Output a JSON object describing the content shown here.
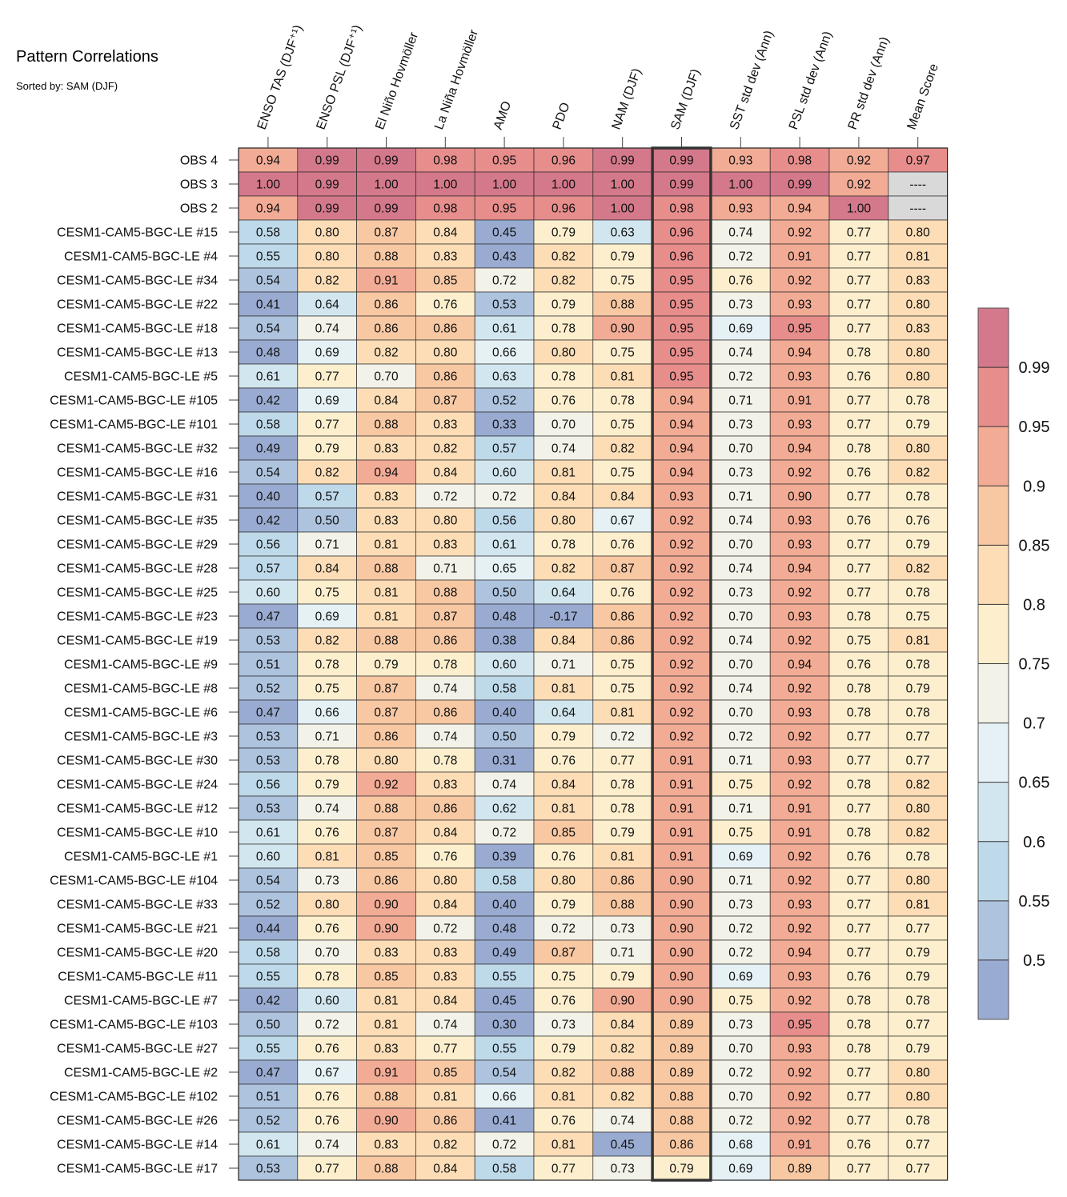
{
  "chart_data": {
    "type": "heatmap",
    "title": "Pattern Correlations",
    "subtitle": "Sorted by: SAM (DJF)",
    "highlight_column": "SAM (DJF)",
    "columns": [
      "ENSO TAS (DJF⁺¹)",
      "ENSO PSL (DJF⁺¹)",
      "El Niño Hovmöller",
      "La Niña Hovmöller",
      "AMO",
      "PDO",
      "NAM (DJF)",
      "SAM (DJF)",
      "SST std dev (Ann)",
      "PSL std dev (Ann)",
      "PR std dev (Ann)",
      "Mean Score"
    ],
    "rows": [
      {
        "name": "OBS 4",
        "values": [
          0.94,
          0.99,
          0.99,
          0.98,
          0.95,
          0.96,
          0.99,
          0.99,
          0.93,
          0.98,
          0.92,
          0.97
        ]
      },
      {
        "name": "OBS 3",
        "values": [
          1.0,
          0.99,
          1.0,
          1.0,
          1.0,
          1.0,
          1.0,
          0.99,
          1.0,
          0.99,
          0.92,
          null
        ]
      },
      {
        "name": "OBS 2",
        "values": [
          0.94,
          0.99,
          0.99,
          0.98,
          0.95,
          0.96,
          1.0,
          0.98,
          0.93,
          0.94,
          1.0,
          null
        ]
      },
      {
        "name": "CESM1-CAM5-BGC-LE #15",
        "values": [
          0.58,
          0.8,
          0.87,
          0.84,
          0.45,
          0.79,
          0.63,
          0.96,
          0.74,
          0.92,
          0.77,
          0.8
        ]
      },
      {
        "name": "CESM1-CAM5-BGC-LE #4",
        "values": [
          0.55,
          0.8,
          0.88,
          0.83,
          0.43,
          0.82,
          0.79,
          0.96,
          0.72,
          0.91,
          0.77,
          0.81
        ]
      },
      {
        "name": "CESM1-CAM5-BGC-LE #34",
        "values": [
          0.54,
          0.82,
          0.91,
          0.85,
          0.72,
          0.82,
          0.75,
          0.95,
          0.76,
          0.92,
          0.77,
          0.83
        ]
      },
      {
        "name": "CESM1-CAM5-BGC-LE #22",
        "values": [
          0.41,
          0.64,
          0.86,
          0.76,
          0.53,
          0.79,
          0.88,
          0.95,
          0.73,
          0.93,
          0.77,
          0.8
        ]
      },
      {
        "name": "CESM1-CAM5-BGC-LE #18",
        "values": [
          0.54,
          0.74,
          0.86,
          0.86,
          0.61,
          0.78,
          0.9,
          0.95,
          0.69,
          0.95,
          0.77,
          0.83
        ]
      },
      {
        "name": "CESM1-CAM5-BGC-LE #13",
        "values": [
          0.48,
          0.69,
          0.82,
          0.8,
          0.66,
          0.8,
          0.75,
          0.95,
          0.74,
          0.94,
          0.78,
          0.8
        ]
      },
      {
        "name": "CESM1-CAM5-BGC-LE #5",
        "values": [
          0.61,
          0.77,
          0.7,
          0.86,
          0.63,
          0.78,
          0.81,
          0.95,
          0.72,
          0.93,
          0.76,
          0.8
        ]
      },
      {
        "name": "CESM1-CAM5-BGC-LE #105",
        "values": [
          0.42,
          0.69,
          0.84,
          0.87,
          0.52,
          0.76,
          0.78,
          0.94,
          0.71,
          0.91,
          0.77,
          0.78
        ]
      },
      {
        "name": "CESM1-CAM5-BGC-LE #101",
        "values": [
          0.58,
          0.77,
          0.88,
          0.83,
          0.33,
          0.7,
          0.75,
          0.94,
          0.73,
          0.93,
          0.77,
          0.79
        ]
      },
      {
        "name": "CESM1-CAM5-BGC-LE #32",
        "values": [
          0.49,
          0.79,
          0.83,
          0.82,
          0.57,
          0.74,
          0.82,
          0.94,
          0.7,
          0.94,
          0.78,
          0.8
        ]
      },
      {
        "name": "CESM1-CAM5-BGC-LE #16",
        "values": [
          0.54,
          0.82,
          0.94,
          0.84,
          0.6,
          0.81,
          0.75,
          0.94,
          0.73,
          0.92,
          0.76,
          0.82
        ]
      },
      {
        "name": "CESM1-CAM5-BGC-LE #31",
        "values": [
          0.4,
          0.57,
          0.83,
          0.72,
          0.72,
          0.84,
          0.84,
          0.93,
          0.71,
          0.9,
          0.77,
          0.78
        ]
      },
      {
        "name": "CESM1-CAM5-BGC-LE #35",
        "values": [
          0.42,
          0.5,
          0.83,
          0.8,
          0.56,
          0.8,
          0.67,
          0.92,
          0.74,
          0.93,
          0.76,
          0.76
        ]
      },
      {
        "name": "CESM1-CAM5-BGC-LE #29",
        "values": [
          0.56,
          0.71,
          0.81,
          0.83,
          0.61,
          0.78,
          0.76,
          0.92,
          0.7,
          0.93,
          0.77,
          0.79
        ]
      },
      {
        "name": "CESM1-CAM5-BGC-LE #28",
        "values": [
          0.57,
          0.84,
          0.88,
          0.71,
          0.65,
          0.82,
          0.87,
          0.92,
          0.74,
          0.94,
          0.77,
          0.82
        ]
      },
      {
        "name": "CESM1-CAM5-BGC-LE #25",
        "values": [
          0.6,
          0.75,
          0.81,
          0.88,
          0.5,
          0.64,
          0.76,
          0.92,
          0.73,
          0.92,
          0.77,
          0.78
        ]
      },
      {
        "name": "CESM1-CAM5-BGC-LE #23",
        "values": [
          0.47,
          0.69,
          0.81,
          0.87,
          0.48,
          -0.17,
          0.86,
          0.92,
          0.7,
          0.93,
          0.78,
          0.75
        ]
      },
      {
        "name": "CESM1-CAM5-BGC-LE #19",
        "values": [
          0.53,
          0.82,
          0.88,
          0.86,
          0.38,
          0.84,
          0.86,
          0.92,
          0.74,
          0.92,
          0.75,
          0.81
        ]
      },
      {
        "name": "CESM1-CAM5-BGC-LE #9",
        "values": [
          0.51,
          0.78,
          0.79,
          0.78,
          0.6,
          0.71,
          0.75,
          0.92,
          0.7,
          0.94,
          0.76,
          0.78
        ]
      },
      {
        "name": "CESM1-CAM5-BGC-LE #8",
        "values": [
          0.52,
          0.75,
          0.87,
          0.74,
          0.58,
          0.81,
          0.75,
          0.92,
          0.74,
          0.92,
          0.78,
          0.79
        ]
      },
      {
        "name": "CESM1-CAM5-BGC-LE #6",
        "values": [
          0.47,
          0.66,
          0.87,
          0.86,
          0.4,
          0.64,
          0.81,
          0.92,
          0.7,
          0.93,
          0.78,
          0.78
        ]
      },
      {
        "name": "CESM1-CAM5-BGC-LE #3",
        "values": [
          0.53,
          0.71,
          0.86,
          0.74,
          0.5,
          0.79,
          0.72,
          0.92,
          0.72,
          0.92,
          0.77,
          0.77
        ]
      },
      {
        "name": "CESM1-CAM5-BGC-LE #30",
        "values": [
          0.53,
          0.78,
          0.8,
          0.78,
          0.31,
          0.76,
          0.77,
          0.91,
          0.71,
          0.93,
          0.77,
          0.77
        ]
      },
      {
        "name": "CESM1-CAM5-BGC-LE #24",
        "values": [
          0.56,
          0.79,
          0.92,
          0.83,
          0.74,
          0.84,
          0.78,
          0.91,
          0.75,
          0.92,
          0.78,
          0.82
        ]
      },
      {
        "name": "CESM1-CAM5-BGC-LE #12",
        "values": [
          0.53,
          0.74,
          0.88,
          0.86,
          0.62,
          0.81,
          0.78,
          0.91,
          0.71,
          0.91,
          0.77,
          0.8
        ]
      },
      {
        "name": "CESM1-CAM5-BGC-LE #10",
        "values": [
          0.61,
          0.76,
          0.87,
          0.84,
          0.72,
          0.85,
          0.79,
          0.91,
          0.75,
          0.91,
          0.78,
          0.82
        ]
      },
      {
        "name": "CESM1-CAM5-BGC-LE #1",
        "values": [
          0.6,
          0.81,
          0.85,
          0.76,
          0.39,
          0.76,
          0.81,
          0.91,
          0.69,
          0.92,
          0.76,
          0.78
        ]
      },
      {
        "name": "CESM1-CAM5-BGC-LE #104",
        "values": [
          0.54,
          0.73,
          0.86,
          0.8,
          0.58,
          0.8,
          0.86,
          0.9,
          0.71,
          0.92,
          0.77,
          0.8
        ]
      },
      {
        "name": "CESM1-CAM5-BGC-LE #33",
        "values": [
          0.52,
          0.8,
          0.9,
          0.84,
          0.4,
          0.79,
          0.88,
          0.9,
          0.73,
          0.93,
          0.77,
          0.81
        ]
      },
      {
        "name": "CESM1-CAM5-BGC-LE #21",
        "values": [
          0.44,
          0.76,
          0.9,
          0.72,
          0.48,
          0.72,
          0.73,
          0.9,
          0.72,
          0.92,
          0.77,
          0.77
        ]
      },
      {
        "name": "CESM1-CAM5-BGC-LE #20",
        "values": [
          0.58,
          0.7,
          0.83,
          0.83,
          0.49,
          0.87,
          0.71,
          0.9,
          0.72,
          0.94,
          0.77,
          0.79
        ]
      },
      {
        "name": "CESM1-CAM5-BGC-LE #11",
        "values": [
          0.55,
          0.78,
          0.85,
          0.83,
          0.55,
          0.75,
          0.79,
          0.9,
          0.69,
          0.93,
          0.76,
          0.79
        ]
      },
      {
        "name": "CESM1-CAM5-BGC-LE #7",
        "values": [
          0.42,
          0.6,
          0.81,
          0.84,
          0.45,
          0.76,
          0.9,
          0.9,
          0.75,
          0.92,
          0.78,
          0.78
        ]
      },
      {
        "name": "CESM1-CAM5-BGC-LE #103",
        "values": [
          0.5,
          0.72,
          0.81,
          0.74,
          0.3,
          0.73,
          0.84,
          0.89,
          0.73,
          0.95,
          0.78,
          0.77
        ]
      },
      {
        "name": "CESM1-CAM5-BGC-LE #27",
        "values": [
          0.55,
          0.76,
          0.83,
          0.77,
          0.55,
          0.79,
          0.82,
          0.89,
          0.7,
          0.93,
          0.78,
          0.79
        ]
      },
      {
        "name": "CESM1-CAM5-BGC-LE #2",
        "values": [
          0.47,
          0.67,
          0.91,
          0.85,
          0.54,
          0.82,
          0.88,
          0.89,
          0.72,
          0.92,
          0.77,
          0.8
        ]
      },
      {
        "name": "CESM1-CAM5-BGC-LE #102",
        "values": [
          0.51,
          0.76,
          0.88,
          0.81,
          0.66,
          0.81,
          0.82,
          0.88,
          0.7,
          0.92,
          0.77,
          0.8
        ]
      },
      {
        "name": "CESM1-CAM5-BGC-LE #26",
        "values": [
          0.52,
          0.76,
          0.9,
          0.86,
          0.41,
          0.76,
          0.74,
          0.88,
          0.72,
          0.92,
          0.77,
          0.78
        ]
      },
      {
        "name": "CESM1-CAM5-BGC-LE #14",
        "values": [
          0.61,
          0.74,
          0.83,
          0.82,
          0.72,
          0.81,
          0.45,
          0.86,
          0.68,
          0.91,
          0.76,
          0.77
        ]
      },
      {
        "name": "CESM1-CAM5-BGC-LE #17",
        "values": [
          0.53,
          0.77,
          0.88,
          0.84,
          0.58,
          0.77,
          0.73,
          0.79,
          0.69,
          0.89,
          0.77,
          0.77
        ]
      }
    ],
    "missing_label": "----",
    "colorbar": {
      "tick_labels": [
        "0.5",
        "0.55",
        "0.6",
        "0.65",
        "0.7",
        "0.75",
        "0.8",
        "0.85",
        "0.9",
        "0.95",
        "0.99"
      ],
      "levels": [
        0.5,
        0.55,
        0.6,
        0.65,
        0.7,
        0.75,
        0.8,
        0.85,
        0.9,
        0.95,
        0.99
      ],
      "colors": [
        "#9aabd1",
        "#adc3de",
        "#bed9e9",
        "#d2e6ef",
        "#e5f1f5",
        "#f3f2e8",
        "#fdefcd",
        "#fcddb6",
        "#f8c8a3",
        "#f2ab95",
        "#e78d8c",
        "#d4788b"
      ],
      "missing_color": "#d9d9d9"
    }
  }
}
